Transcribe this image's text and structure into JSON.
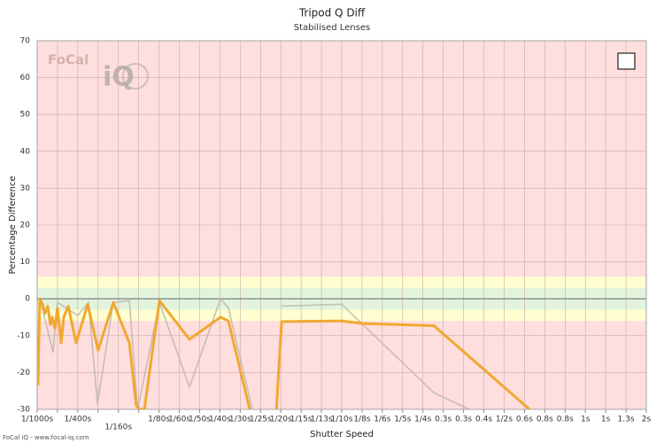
{
  "chart_data": {
    "type": "line",
    "title": "Tripod Q Diff",
    "subtitle": "Stabilised Lenses",
    "x_label": "Shutter Speed",
    "y_label": "Percentage Difference",
    "watermark": [
      "FoCal",
      "iQ"
    ],
    "footer": "FoCal iQ - www.focal-iq.com",
    "xlim": [
      0,
      30
    ],
    "xticks": [
      {
        "value": 0,
        "label": "1/1000s"
      },
      {
        "value": 1,
        "label": null
      },
      {
        "value": 2,
        "label": "1/400s"
      },
      {
        "value": 3,
        "label": null
      },
      {
        "value": 4,
        "label": "1/160s"
      },
      {
        "value": 5,
        "label": null
      },
      {
        "value": 6,
        "label": "1/80s"
      },
      {
        "value": 7,
        "label": "1/60s"
      },
      {
        "value": 8,
        "label": "1/50s"
      },
      {
        "value": 9,
        "label": "1/40s"
      },
      {
        "value": 10,
        "label": "1/30s"
      },
      {
        "value": 11,
        "label": "1/25s"
      },
      {
        "value": 12,
        "label": "1/20s"
      },
      {
        "value": 13,
        "label": "1/15s"
      },
      {
        "value": 14,
        "label": "1/13s"
      },
      {
        "value": 15,
        "label": "1/10s"
      },
      {
        "value": 16,
        "label": "1/8s"
      },
      {
        "value": 17,
        "label": "1/6s"
      },
      {
        "value": 18,
        "label": "1/5s"
      },
      {
        "value": 19,
        "label": "1/4s"
      },
      {
        "value": 20,
        "label": "0.3s"
      },
      {
        "value": 21,
        "label": "0.3s"
      },
      {
        "value": 22,
        "label": "0.4s"
      },
      {
        "value": 23,
        "label": "1/2s"
      },
      {
        "value": 24,
        "label": "0.6s"
      },
      {
        "value": 25,
        "label": "0.8s"
      },
      {
        "value": 26,
        "label": "0.8s"
      },
      {
        "value": 27,
        "label": "1s"
      },
      {
        "value": 28,
        "label": "1s"
      },
      {
        "value": 29,
        "label": "1.3s"
      },
      {
        "value": 30,
        "label": "2s"
      }
    ],
    "ylim": [
      -30,
      70
    ],
    "yticks": [
      -30,
      -20,
      -10,
      0,
      10,
      20,
      30,
      40,
      50,
      60,
      70
    ],
    "grid": true,
    "background": "#ffdede",
    "bands": [
      {
        "from": -6,
        "to": 6,
        "color": "#ffffd2"
      },
      {
        "from": -3,
        "to": 3,
        "color": "#e2f5dc"
      }
    ],
    "series": [
      {
        "color": "#b8b4ac",
        "x": [
          0.13,
          0.78,
          1.0,
          2.0,
          2.53,
          2.97,
          3.75,
          4.54,
          4.95,
          6.02,
          7.5,
          9.03,
          9.42,
          10.6,
          null,
          12.04,
          15.0,
          19.54,
          21.28
        ],
        "values": [
          0,
          -14.5,
          -1,
          -4.5,
          -1,
          -28.5,
          -1,
          -0.5,
          -30,
          -1,
          -24,
          0,
          -2.5,
          -30,
          null,
          -2,
          -1.5,
          -25.5,
          -30
        ]
      },
      {
        "color": "#f0a428",
        "x": [
          0.04,
          0.13,
          0.26,
          0.39,
          0.52,
          0.65,
          0.74,
          0.87,
          1.0,
          1.18,
          1.31,
          1.53,
          1.92,
          2.49,
          3.0,
          3.75,
          4.54,
          4.88,
          5.06,
          5.28,
          6.02,
          7.5,
          9.03,
          9.42,
          10.47,
          null,
          11.78,
          12.04,
          15.0,
          16.0,
          19.54,
          24.25
        ],
        "values": [
          -23.5,
          0,
          -1.5,
          -4,
          -2,
          -7,
          -5,
          -8,
          -2.5,
          -12,
          -5,
          -2,
          -12,
          -1.5,
          -14,
          -1,
          -12,
          -29,
          -30,
          -30,
          -0.5,
          -11,
          -5,
          -6,
          -30,
          null,
          -30,
          -6.2,
          -6,
          -6.7,
          -7.3,
          -30
        ]
      }
    ]
  }
}
